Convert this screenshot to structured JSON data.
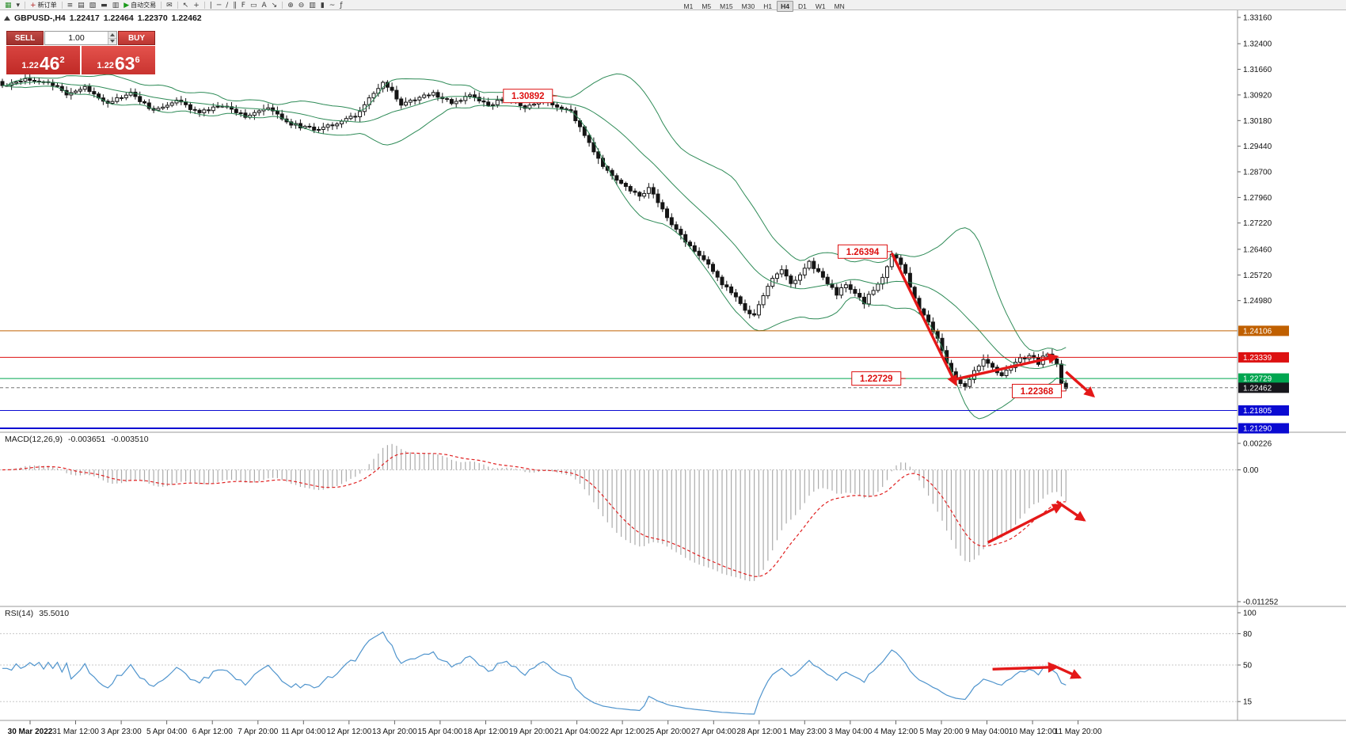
{
  "toolbar": {
    "new_order_label": "新订单",
    "autotrading_label": "自动交易",
    "timeframes": [
      "M1",
      "M5",
      "M15",
      "M30",
      "H1",
      "H4",
      "D1",
      "W1",
      "MN"
    ],
    "active_timeframe": "H4",
    "icons": [
      {
        "name": "new-chart-icon",
        "glyph": "▦",
        "accent": "#2f8f2f"
      },
      {
        "name": "chart-profiles-icon",
        "glyph": "▾"
      },
      {
        "name": "toolbar-separator",
        "glyph": ""
      },
      {
        "name": "new-order-icon",
        "glyph": "+",
        "label": "新订单",
        "accent": "#b22222"
      },
      {
        "name": "toolbar-separator",
        "glyph": ""
      },
      {
        "name": "market-watch-icon",
        "glyph": "≡"
      },
      {
        "name": "data-window-icon",
        "glyph": "▤"
      },
      {
        "name": "navigator-icon",
        "glyph": "▧"
      },
      {
        "name": "terminal-icon",
        "glyph": "▬"
      },
      {
        "name": "strategy-tester-icon",
        "glyph": "▥"
      },
      {
        "name": "autotrading-icon",
        "glyph": "▶",
        "label": "自动交易",
        "accent": "#1a9a1a"
      },
      {
        "name": "toolbar-separator",
        "glyph": ""
      },
      {
        "name": "new-email-icon",
        "glyph": "✉"
      },
      {
        "name": "toolbar-separator",
        "glyph": ""
      },
      {
        "name": "cursor-icon",
        "glyph": "↖"
      },
      {
        "name": "crosshair-icon",
        "glyph": "+"
      },
      {
        "name": "toolbar-separator",
        "glyph": ""
      },
      {
        "name": "vertical-line-icon",
        "glyph": "|"
      },
      {
        "name": "horizontal-line-icon",
        "glyph": "─"
      },
      {
        "name": "trendline-icon",
        "glyph": "/"
      },
      {
        "name": "channel-icon",
        "glyph": "∥"
      },
      {
        "name": "fibonacci-icon",
        "glyph": "F"
      },
      {
        "name": "shapes-icon",
        "glyph": "▭"
      },
      {
        "name": "text-label-icon",
        "glyph": "A"
      },
      {
        "name": "arrow-object-icon",
        "glyph": "↘"
      },
      {
        "name": "toolbar-separator",
        "glyph": ""
      },
      {
        "name": "zoom-in-icon",
        "glyph": "⊕"
      },
      {
        "name": "zoom-out-icon",
        "glyph": "⊖"
      },
      {
        "name": "bar-chart-icon",
        "glyph": "▥"
      },
      {
        "name": "candlestick-chart-icon",
        "glyph": "▮"
      },
      {
        "name": "line-chart-icon",
        "glyph": "~"
      },
      {
        "name": "indicators-icon",
        "glyph": "ƒ"
      }
    ]
  },
  "chart": {
    "symbol_title": "GBPUSD-,H4",
    "ohlc": {
      "open": "1.22417",
      "high": "1.22464",
      "low": "1.22370",
      "close": "1.22462"
    },
    "one_click": {
      "sell_label": "SELL",
      "buy_label": "BUY",
      "volume": "1.00",
      "sell_price": "1.22",
      "sell_big": "46",
      "sell_sup": "2",
      "buy_price": "1.22",
      "buy_big": "63",
      "buy_sup": "6"
    }
  },
  "macd": {
    "label": "MACD(12,26,9)",
    "value_main": "-0.003651",
    "value_signal": "-0.003510"
  },
  "rsi": {
    "label": "RSI(14)",
    "value": "35.5010"
  },
  "chart_data": {
    "type": "candlestick",
    "symbol": "GBPUSD",
    "timeframe": "H4",
    "bar_count": 233,
    "price_axis_top": 1.3316,
    "price_axis_bottom": 1.2129,
    "price_axis_labels": [
      "1.33160",
      "1.32400",
      "1.31660",
      "1.30920",
      "1.30180",
      "1.29440",
      "1.28700",
      "1.27960",
      "1.27220",
      "1.26460",
      "1.25720",
      "1.24980"
    ],
    "close_waypoints": [
      [
        0,
        1.3118
      ],
      [
        5,
        1.314
      ],
      [
        10,
        1.3128
      ],
      [
        14,
        1.3096
      ],
      [
        18,
        1.3112
      ],
      [
        23,
        1.307
      ],
      [
        28,
        1.3096
      ],
      [
        33,
        1.3046
      ],
      [
        38,
        1.3076
      ],
      [
        43,
        1.304
      ],
      [
        48,
        1.3062
      ],
      [
        53,
        1.3032
      ],
      [
        58,
        1.3052
      ],
      [
        63,
        1.3008
      ],
      [
        68,
        1.2992
      ],
      [
        73,
        1.3012
      ],
      [
        77,
        1.3032
      ],
      [
        80,
        1.308
      ],
      [
        83,
        1.3124
      ],
      [
        85,
        1.3105
      ],
      [
        87,
        1.3062
      ],
      [
        90,
        1.308
      ],
      [
        94,
        1.3096
      ],
      [
        98,
        1.3068
      ],
      [
        102,
        1.309
      ],
      [
        106,
        1.3062
      ],
      [
        110,
        1.3082
      ],
      [
        114,
        1.3054
      ],
      [
        118,
        1.3076
      ],
      [
        121,
        1.3058
      ],
      [
        124,
        1.3042
      ],
      [
        127,
        1.2978
      ],
      [
        130,
        1.2905
      ],
      [
        133,
        1.2856
      ],
      [
        136,
        1.2828
      ],
      [
        139,
        1.2798
      ],
      [
        141,
        1.2824
      ],
      [
        144,
        1.2762
      ],
      [
        147,
        1.2702
      ],
      [
        150,
        1.2655
      ],
      [
        153,
        1.2618
      ],
      [
        156,
        1.2562
      ],
      [
        159,
        1.252
      ],
      [
        162,
        1.2472
      ],
      [
        164,
        1.2452
      ],
      [
        166,
        1.2516
      ],
      [
        168,
        1.2558
      ],
      [
        170,
        1.259
      ],
      [
        172,
        1.2546
      ],
      [
        174,
        1.2572
      ],
      [
        176,
        1.2612
      ],
      [
        178,
        1.2578
      ],
      [
        180,
        1.2548
      ],
      [
        182,
        1.2518
      ],
      [
        184,
        1.2546
      ],
      [
        186,
        1.2514
      ],
      [
        188,
        1.2492
      ],
      [
        190,
        1.253
      ],
      [
        192,
        1.2564
      ],
      [
        194,
        1.263
      ],
      [
        196,
        1.2605
      ],
      [
        198,
        1.254
      ],
      [
        200,
        1.2478
      ],
      [
        202,
        1.2432
      ],
      [
        204,
        1.2386
      ],
      [
        206,
        1.232
      ],
      [
        208,
        1.2266
      ],
      [
        210,
        1.2252
      ],
      [
        212,
        1.2296
      ],
      [
        214,
        1.2326
      ],
      [
        216,
        1.2306
      ],
      [
        218,
        1.2282
      ],
      [
        220,
        1.2308
      ],
      [
        222,
        1.233
      ],
      [
        224,
        1.2338
      ],
      [
        226,
        1.2318
      ],
      [
        228,
        1.2348
      ],
      [
        230,
        1.231
      ],
      [
        231,
        1.2262
      ],
      [
        232,
        1.2246
      ]
    ],
    "bollinger": {
      "period": 20,
      "deviation": 2,
      "color": "#2e8b57"
    },
    "levels": [
      {
        "price": 1.24106,
        "badge": "1.24106",
        "color": "#c06000",
        "badge_color": "#c06000",
        "style": "solid",
        "width": 1
      },
      {
        "price": 1.23339,
        "badge": "1.23339",
        "color": "#dd1111",
        "badge_color": "#dd1111",
        "style": "solid",
        "width": 1
      },
      {
        "price": 1.22729,
        "badge": "1.22729",
        "color": "#00a650",
        "badge_color": "#00a650",
        "style": "solid",
        "width": 1
      },
      {
        "price": 1.22462,
        "badge": "1.22462",
        "color": "#777777",
        "badge_color": "#17171c",
        "style": "dash",
        "width": 1
      },
      {
        "price": 1.21805,
        "badge": "1.21805",
        "color": "#0a0ad2",
        "badge_color": "#0a0ad2",
        "style": "solid",
        "width": 1
      },
      {
        "price": 1.2129,
        "badge": "1.21290",
        "color": "#0a0ad2",
        "badge_color": "#0a0ad2",
        "style": "solid",
        "width": 2
      }
    ],
    "price_labels": [
      {
        "text": "1.30892",
        "bar": 120,
        "price": 1.30892
      },
      {
        "text": "1.26394",
        "bar": 193,
        "price": 1.26394
      },
      {
        "text": "1.22729",
        "bar": 196,
        "price": 1.22729
      },
      {
        "text": "1.22368",
        "bar": 231,
        "price": 1.22368
      }
    ],
    "trend_arrows": [
      {
        "panel": "price",
        "from": {
          "bar": 194,
          "price": 1.2635
        },
        "to": {
          "bar": 208,
          "price": 1.2256
        }
      },
      {
        "panel": "price",
        "from": {
          "bar": 207,
          "price": 1.2268
        },
        "to": {
          "bar": 230,
          "price": 1.2336
        }
      },
      {
        "panel": "price",
        "from": {
          "bar": 232,
          "price": 1.2292
        },
        "to": {
          "bar": 238,
          "price": 1.2222
        }
      },
      {
        "panel": "macd",
        "from": {
          "bar": 215,
          "value": -0.0062
        },
        "to": {
          "bar": 231,
          "value": -0.003
        }
      },
      {
        "panel": "macd",
        "from": {
          "bar": 230,
          "value": -0.0027
        },
        "to": {
          "bar": 236,
          "value": -0.0043
        }
      },
      {
        "panel": "rsi",
        "from": {
          "bar": 216,
          "value": 46
        },
        "to": {
          "bar": 230,
          "value": 48
        }
      },
      {
        "panel": "rsi",
        "from": {
          "bar": 229,
          "value": 50
        },
        "to": {
          "bar": 235,
          "value": 38
        }
      }
    ],
    "macd": {
      "fast": 12,
      "slow": 26,
      "signal_period": 9,
      "axis_max": 0.00226,
      "axis_min": -0.011252,
      "axis_labels": [
        "0.00226",
        "0.00",
        "-0.011252"
      ],
      "histogram_color": "#ababab",
      "signal_color": "#e02020"
    },
    "rsi": {
      "period": 14,
      "current": 35.501,
      "line_color": "#4f94cd",
      "axis_labels": [
        "100",
        "80",
        "50",
        "15"
      ],
      "level_lines": [
        80,
        50,
        15
      ]
    },
    "time_labels": [
      "30 Mar 2022",
      "31 Mar 12:00",
      "3 Apr 23:00",
      "5 Apr 04:00",
      "6 Apr 12:00",
      "7 Apr 20:00",
      "11 Apr 04:00",
      "12 Apr 12:00",
      "13 Apr 20:00",
      "15 Apr 04:00",
      "18 Apr 12:00",
      "19 Apr 20:00",
      "21 Apr 04:00",
      "22 Apr 12:00",
      "25 Apr 20:00",
      "27 Apr 04:00",
      "28 Apr 12:00",
      "1 May 23:00",
      "3 May 04:00",
      "4 May 12:00",
      "5 May 20:00",
      "9 May 04:00",
      "10 May 12:00",
      "11 May 20:00"
    ]
  }
}
